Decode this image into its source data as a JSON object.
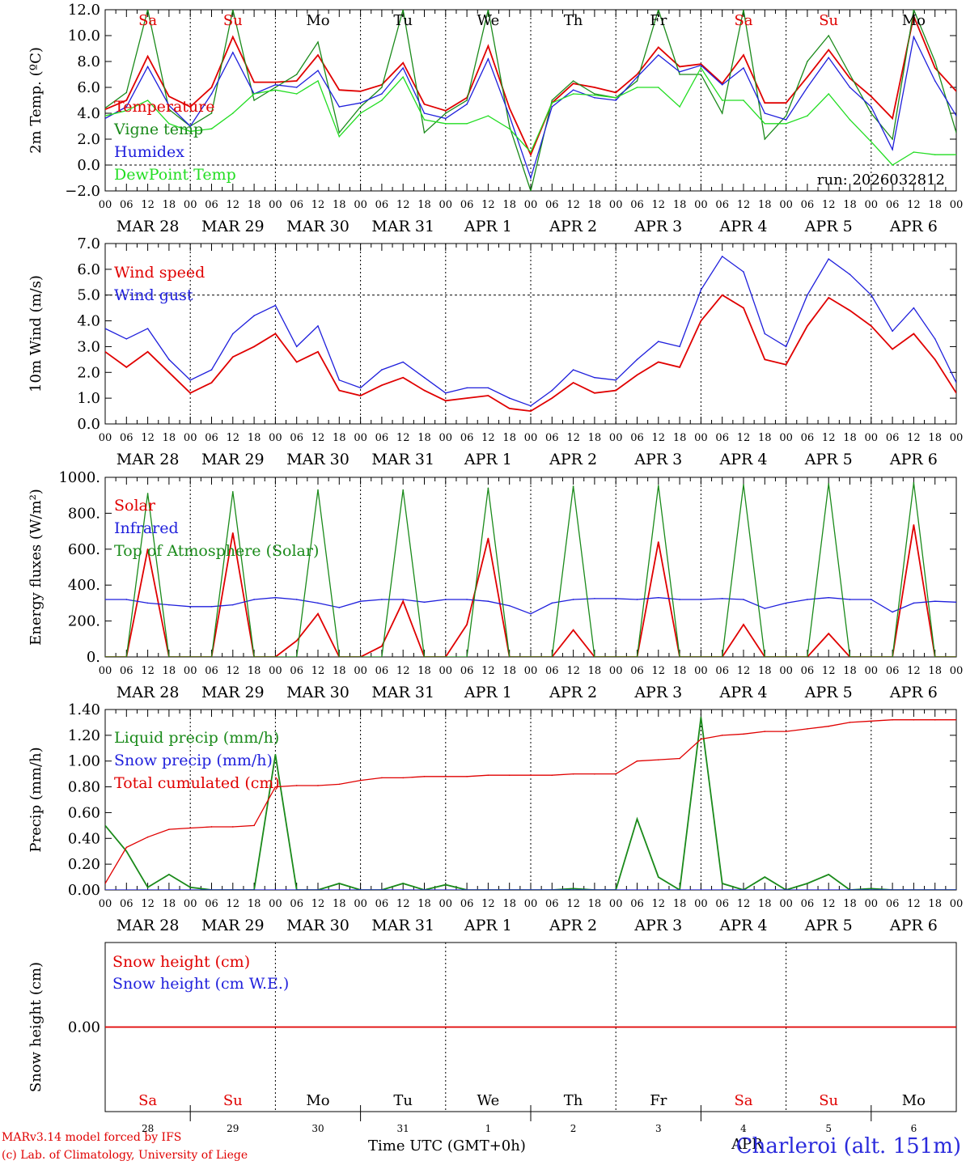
{
  "run_label": "run: 2026032812",
  "station": "Charleroi (alt. 151m)",
  "credit_line1": "MARv3.14 model forced by IFS",
  "credit_line2": "(c) Lab. of Climatology, University of Liege",
  "time_axis_label": "Time UTC (GMT+0h)",
  "month_label": "APR",
  "colors": {
    "red": "#e00000",
    "green": "#1a8a1a",
    "blue": "#1f1fdc",
    "lightgreen": "#22dd22",
    "black": "#000000"
  },
  "hour_ticks": [
    "00",
    "06",
    "12",
    "18"
  ],
  "final_hour": "00",
  "days": [
    "MAR 28",
    "MAR 29",
    "MAR 30",
    "MAR 31",
    "APR 1",
    "APR 2",
    "APR 3",
    "APR 4",
    "APR 5",
    "APR 6"
  ],
  "day_numbers": [
    "28",
    "29",
    "30",
    "31",
    "1",
    "2",
    "3",
    "4",
    "5",
    "6"
  ],
  "weekdays": [
    {
      "label": "Sa",
      "color": "#e00000"
    },
    {
      "label": "Su",
      "color": "#e00000"
    },
    {
      "label": "Mo",
      "color": "#000000"
    },
    {
      "label": "Tu",
      "color": "#000000"
    },
    {
      "label": "We",
      "color": "#000000"
    },
    {
      "label": "Th",
      "color": "#000000"
    },
    {
      "label": "Fr",
      "color": "#000000"
    },
    {
      "label": "Sa",
      "color": "#e00000"
    },
    {
      "label": "Su",
      "color": "#e00000"
    },
    {
      "label": "Mo",
      "color": "#000000"
    }
  ],
  "chart_data": [
    {
      "type": "line",
      "title": "2m Temperature",
      "ylabel": "2m Temp. (ºC)",
      "ylim": [
        -2,
        12
      ],
      "yticks": [
        "−2.0",
        "0.0",
        "2.0",
        "4.0",
        "6.0",
        "8.0",
        "10.0",
        "12.0"
      ],
      "ref_line": 0,
      "x": [
        0,
        6,
        12,
        18,
        24,
        30,
        36,
        42,
        48,
        54,
        60,
        66,
        72,
        78,
        84,
        90,
        96,
        102,
        108,
        114,
        120,
        126,
        132,
        138,
        144,
        150,
        156,
        162,
        168,
        174,
        180,
        186,
        192,
        198,
        204,
        210,
        216,
        222,
        228,
        234,
        240
      ],
      "series": [
        {
          "name": "Temperature",
          "color": "#e00000",
          "values": [
            4.3,
            5.0,
            8.4,
            5.3,
            4.5,
            6.0,
            9.9,
            6.4,
            6.4,
            6.5,
            8.5,
            5.8,
            5.7,
            6.2,
            7.9,
            4.7,
            4.2,
            5.2,
            9.2,
            4.4,
            0.8,
            4.8,
            6.3,
            6.0,
            5.6,
            7.0,
            9.1,
            7.6,
            7.8,
            6.3,
            8.5,
            4.8,
            4.8,
            6.8,
            8.9,
            6.7,
            5.3,
            3.6,
            11.5,
            7.5,
            5.7
          ]
        },
        {
          "name": "Vigne temp",
          "color": "#1a8a1a",
          "values": [
            4.4,
            5.6,
            12.0,
            4.3,
            3.0,
            4.0,
            12.0,
            5.0,
            6.0,
            7.0,
            9.5,
            2.5,
            4.5,
            6.0,
            12.0,
            2.5,
            4.0,
            5.0,
            12.0,
            3.0,
            -2.0,
            5.0,
            6.5,
            5.5,
            5.2,
            6.5,
            12.0,
            7.0,
            7.0,
            4.0,
            12.0,
            2.0,
            3.8,
            8.0,
            10.0,
            7.0,
            4.0,
            2.0,
            12.0,
            8.0,
            2.5
          ]
        },
        {
          "name": "Humidex",
          "color": "#1f1fdc",
          "values": [
            3.6,
            4.5,
            7.6,
            4.6,
            3.0,
            5.5,
            8.7,
            5.5,
            6.2,
            6.0,
            7.3,
            4.5,
            4.8,
            5.5,
            7.5,
            4.0,
            3.6,
            4.7,
            8.2,
            3.8,
            -1.0,
            4.5,
            5.8,
            5.2,
            5.0,
            6.8,
            8.5,
            7.2,
            7.7,
            6.2,
            7.5,
            4.0,
            3.5,
            6.0,
            8.3,
            6.0,
            4.5,
            1.2,
            9.9,
            6.5,
            3.8
          ]
        },
        {
          "name": "DewPoint Temp",
          "color": "#22dd22",
          "values": [
            3.8,
            4.2,
            5.0,
            3.2,
            2.6,
            2.8,
            4.0,
            5.5,
            5.8,
            5.5,
            6.5,
            2.2,
            4.0,
            5.0,
            6.8,
            3.5,
            3.2,
            3.2,
            3.8,
            2.8,
            1.0,
            4.8,
            5.5,
            5.4,
            5.2,
            6.0,
            6.0,
            4.5,
            7.5,
            5.0,
            5.0,
            3.2,
            3.2,
            3.8,
            5.5,
            3.5,
            1.8,
            0.0,
            1.0,
            0.8,
            0.8
          ]
        }
      ]
    },
    {
      "type": "line",
      "title": "10m Wind",
      "ylabel": "10m Wind (m/s)",
      "ylim": [
        0,
        7
      ],
      "yticks": [
        "0.0",
        "1.0",
        "2.0",
        "3.0",
        "4.0",
        "5.0",
        "6.0",
        "7.0"
      ],
      "ref_line": 5,
      "x": [
        0,
        6,
        12,
        18,
        24,
        30,
        36,
        42,
        48,
        54,
        60,
        66,
        72,
        78,
        84,
        90,
        96,
        102,
        108,
        114,
        120,
        126,
        132,
        138,
        144,
        150,
        156,
        162,
        168,
        174,
        180,
        186,
        192,
        198,
        204,
        210,
        216,
        222,
        228,
        234,
        240
      ],
      "series": [
        {
          "name": "Wind speed",
          "color": "#e00000",
          "values": [
            2.8,
            2.2,
            2.8,
            2.0,
            1.2,
            1.6,
            2.6,
            3.0,
            3.5,
            2.4,
            2.8,
            1.3,
            1.1,
            1.5,
            1.8,
            1.3,
            0.9,
            1.0,
            1.1,
            0.6,
            0.5,
            1.0,
            1.6,
            1.2,
            1.3,
            1.9,
            2.4,
            2.2,
            4.0,
            5.0,
            4.5,
            2.5,
            2.3,
            3.8,
            4.9,
            4.4,
            3.8,
            2.9,
            3.5,
            2.5,
            1.2
          ]
        },
        {
          "name": "Wind gust",
          "color": "#1f1fdc",
          "values": [
            3.7,
            3.3,
            3.7,
            2.5,
            1.7,
            2.1,
            3.5,
            4.2,
            4.6,
            3.0,
            3.8,
            1.7,
            1.4,
            2.1,
            2.4,
            1.8,
            1.2,
            1.4,
            1.4,
            1.0,
            0.7,
            1.3,
            2.1,
            1.8,
            1.7,
            2.5,
            3.2,
            3.0,
            5.2,
            6.5,
            5.9,
            3.5,
            3.0,
            5.0,
            6.4,
            5.8,
            5.0,
            3.6,
            4.5,
            3.3,
            1.6
          ]
        }
      ]
    },
    {
      "type": "line",
      "title": "Energy fluxes",
      "ylabel": "Energy fluxes (W/m²)",
      "ylim": [
        0,
        1000
      ],
      "yticks": [
        "0.",
        "200.",
        "400.",
        "600.",
        "800.",
        "1000."
      ],
      "x": [
        0,
        6,
        12,
        18,
        24,
        30,
        36,
        42,
        48,
        54,
        60,
        66,
        72,
        78,
        84,
        90,
        96,
        102,
        108,
        114,
        120,
        126,
        132,
        138,
        144,
        150,
        156,
        162,
        168,
        174,
        180,
        186,
        192,
        198,
        204,
        210,
        216,
        222,
        228,
        234,
        240
      ],
      "series": [
        {
          "name": "Solar",
          "color": "#e00000",
          "values": [
            0,
            0,
            600,
            0,
            0,
            0,
            690,
            0,
            0,
            90,
            240,
            0,
            0,
            60,
            310,
            0,
            0,
            180,
            660,
            0,
            0,
            0,
            150,
            0,
            0,
            0,
            640,
            0,
            0,
            0,
            180,
            0,
            0,
            0,
            130,
            0,
            0,
            0,
            735,
            0,
            0
          ]
        },
        {
          "name": "Infrared",
          "color": "#1f1fdc",
          "values": [
            320,
            320,
            300,
            290,
            280,
            280,
            290,
            320,
            330,
            320,
            300,
            275,
            310,
            320,
            320,
            305,
            320,
            320,
            310,
            285,
            240,
            300,
            320,
            325,
            325,
            320,
            330,
            320,
            320,
            325,
            320,
            270,
            300,
            320,
            330,
            320,
            320,
            250,
            300,
            310,
            305
          ]
        },
        {
          "name": "Top of Atmosphere (Solar)",
          "color": "#1a8a1a",
          "values": [
            0,
            0,
            910,
            0,
            0,
            0,
            920,
            0,
            0,
            0,
            930,
            0,
            0,
            0,
            930,
            0,
            0,
            0,
            940,
            0,
            0,
            0,
            950,
            0,
            0,
            0,
            955,
            0,
            0,
            0,
            960,
            0,
            0,
            0,
            965,
            0,
            0,
            0,
            970,
            0,
            0
          ]
        }
      ]
    },
    {
      "type": "line",
      "title": "Precip",
      "ylabel": "Precip (mm/h)",
      "ylim": [
        0,
        1.4
      ],
      "yticks": [
        "0.00",
        "0.20",
        "0.40",
        "0.60",
        "0.80",
        "1.00",
        "1.20",
        "1.40"
      ],
      "x": [
        0,
        6,
        12,
        18,
        24,
        30,
        36,
        42,
        48,
        54,
        60,
        66,
        72,
        78,
        84,
        90,
        96,
        102,
        108,
        114,
        120,
        126,
        132,
        138,
        144,
        150,
        156,
        162,
        168,
        174,
        180,
        186,
        192,
        198,
        204,
        210,
        216,
        222,
        228,
        234,
        240
      ],
      "series": [
        {
          "name": "Liquid precip (mm/h)",
          "color": "#1a8a1a",
          "values": [
            0.5,
            0.3,
            0.02,
            0.12,
            0.02,
            0.0,
            0.0,
            0.0,
            1.05,
            0.0,
            0.0,
            0.05,
            0.0,
            0.0,
            0.05,
            0.0,
            0.04,
            0.0,
            0.0,
            0.0,
            0.0,
            0.0,
            0.01,
            0.0,
            0.0,
            0.55,
            0.1,
            0.0,
            1.34,
            0.05,
            0.0,
            0.1,
            0.0,
            0.05,
            0.12,
            0.0,
            0.01,
            0.0,
            0.0,
            0.0,
            0.0
          ]
        },
        {
          "name": "Snow precip (mm/h)",
          "color": "#1f1fdc",
          "values": [
            0,
            0,
            0,
            0,
            0,
            0,
            0,
            0,
            0,
            0,
            0,
            0,
            0,
            0,
            0,
            0,
            0,
            0,
            0,
            0,
            0,
            0,
            0,
            0,
            0,
            0,
            0,
            0,
            0,
            0,
            0,
            0,
            0,
            0,
            0,
            0,
            0,
            0,
            0,
            0,
            0
          ]
        },
        {
          "name": "Total cumulated (cm)",
          "color": "#e00000",
          "values": [
            0.05,
            0.33,
            0.41,
            0.47,
            0.48,
            0.49,
            0.49,
            0.5,
            0.8,
            0.81,
            0.81,
            0.82,
            0.85,
            0.87,
            0.87,
            0.88,
            0.88,
            0.88,
            0.89,
            0.89,
            0.89,
            0.89,
            0.9,
            0.9,
            0.9,
            1.0,
            1.01,
            1.02,
            1.17,
            1.2,
            1.21,
            1.23,
            1.23,
            1.25,
            1.27,
            1.3,
            1.31,
            1.32,
            1.32,
            1.32,
            1.32
          ]
        }
      ]
    },
    {
      "type": "line",
      "title": "Snow height",
      "ylabel": "Snow height (cm)",
      "ylim": [
        -1,
        1
      ],
      "yticks": [
        "0.00"
      ],
      "x": [
        0,
        240
      ],
      "series": [
        {
          "name": "Snow height (cm)",
          "color": "#e00000",
          "values": [
            0,
            0
          ]
        },
        {
          "name": "Snow height (cm W.E.)",
          "color": "#1f1fdc",
          "values": [
            0,
            0
          ]
        }
      ]
    }
  ]
}
